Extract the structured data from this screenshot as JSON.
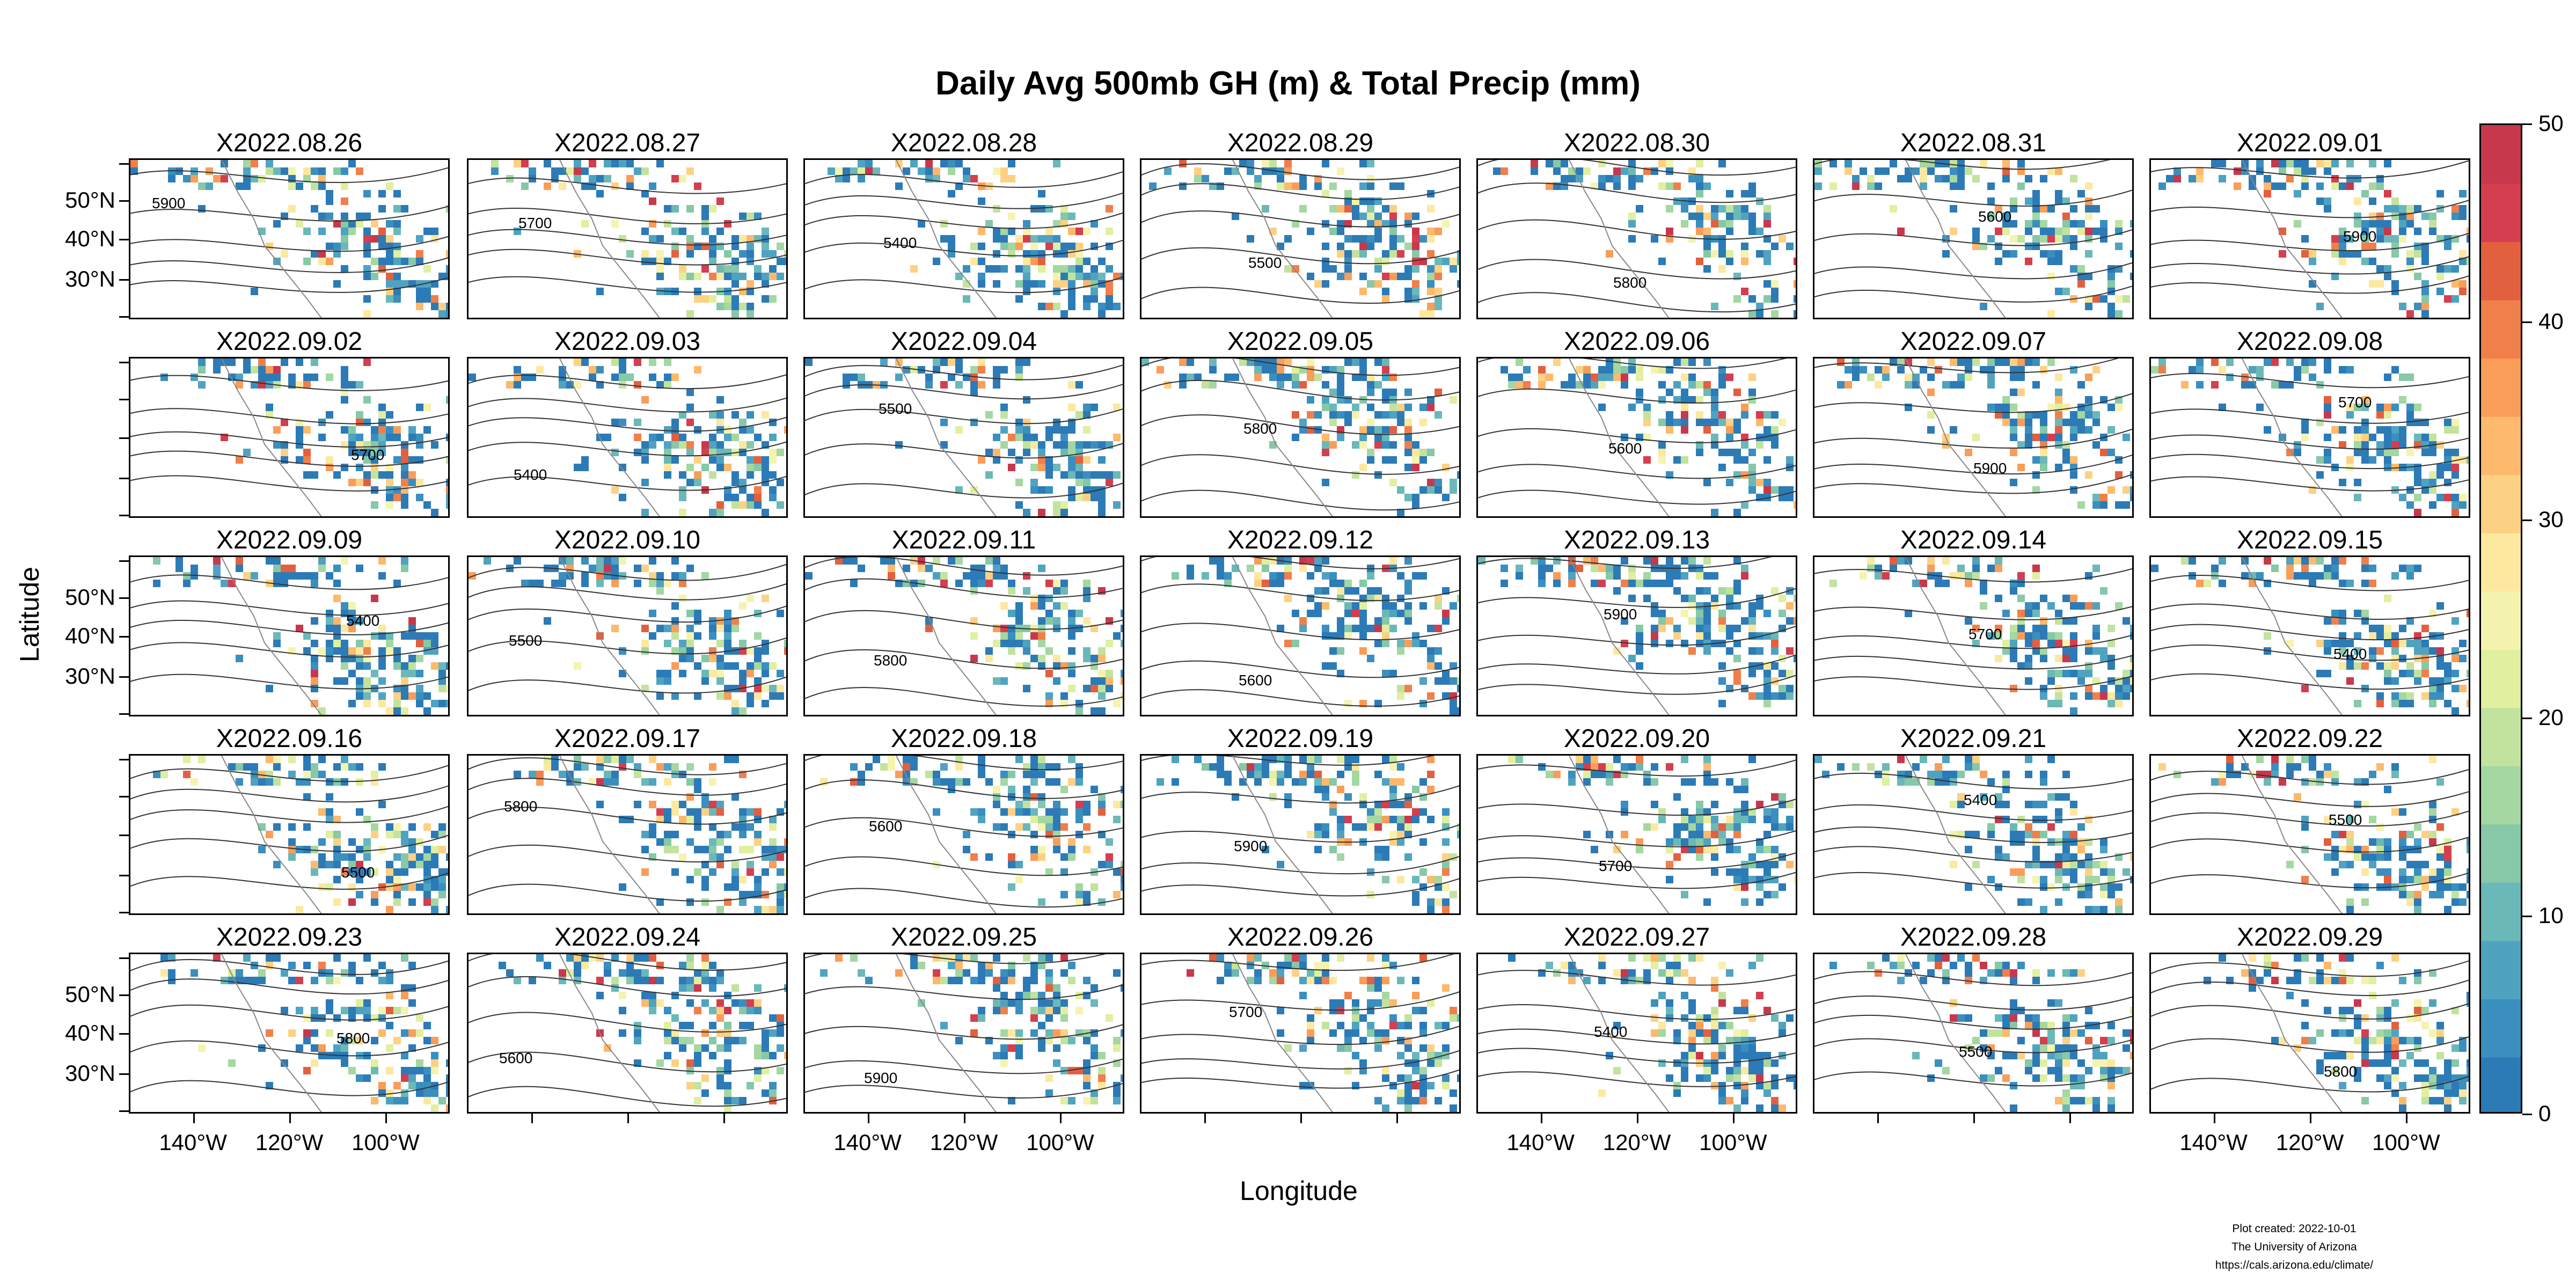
{
  "chart_data": {
    "type": "heatmap",
    "title": "Daily Avg 500mb GH (m) & Total Precip (mm)",
    "xlabel": "Longitude",
    "ylabel": "Latitude",
    "panels": [
      "X2022.08.26",
      "X2022.08.27",
      "X2022.08.28",
      "X2022.08.29",
      "X2022.08.30",
      "X2022.08.31",
      "X2022.09.01",
      "X2022.09.02",
      "X2022.09.03",
      "X2022.09.04",
      "X2022.09.05",
      "X2022.09.06",
      "X2022.09.07",
      "X2022.09.08",
      "X2022.09.09",
      "X2022.09.10",
      "X2022.09.11",
      "X2022.09.12",
      "X2022.09.13",
      "X2022.09.14",
      "X2022.09.15",
      "X2022.09.16",
      "X2022.09.17",
      "X2022.09.18",
      "X2022.09.19",
      "X2022.09.20",
      "X2022.09.21",
      "X2022.09.22",
      "X2022.09.23",
      "X2022.09.24",
      "X2022.09.25",
      "X2022.09.26",
      "X2022.09.27",
      "X2022.09.28",
      "X2022.09.29"
    ],
    "y_tick_labels": [
      "50°N",
      "40°N",
      "30°N"
    ],
    "x_tick_labels": [
      "140°W",
      "120°W",
      "100°W"
    ],
    "colorbar": {
      "min": 0,
      "max": 50,
      "ticks": [
        "0",
        "10",
        "20",
        "30",
        "40",
        "50"
      ],
      "colors": [
        "#2c7bb6",
        "#3a8fbf",
        "#4fa3c1",
        "#6bb8b8",
        "#86c8a7",
        "#a4d7a1",
        "#c2e39e",
        "#e0efa0",
        "#f5f3b0",
        "#fde8a0",
        "#fdd184",
        "#fdb96c",
        "#f99d59",
        "#f07f4b",
        "#e3603f",
        "#d53e4f",
        "#c8384c"
      ]
    },
    "contour_labels": [
      "5900",
      "5700",
      "5400",
      "5500",
      "5800",
      "5600"
    ]
  },
  "credits": {
    "line1": "Plot created: 2022-10-01",
    "line2": "The University of Arizona",
    "line3": "https://cals.arizona.edu/climate/"
  }
}
